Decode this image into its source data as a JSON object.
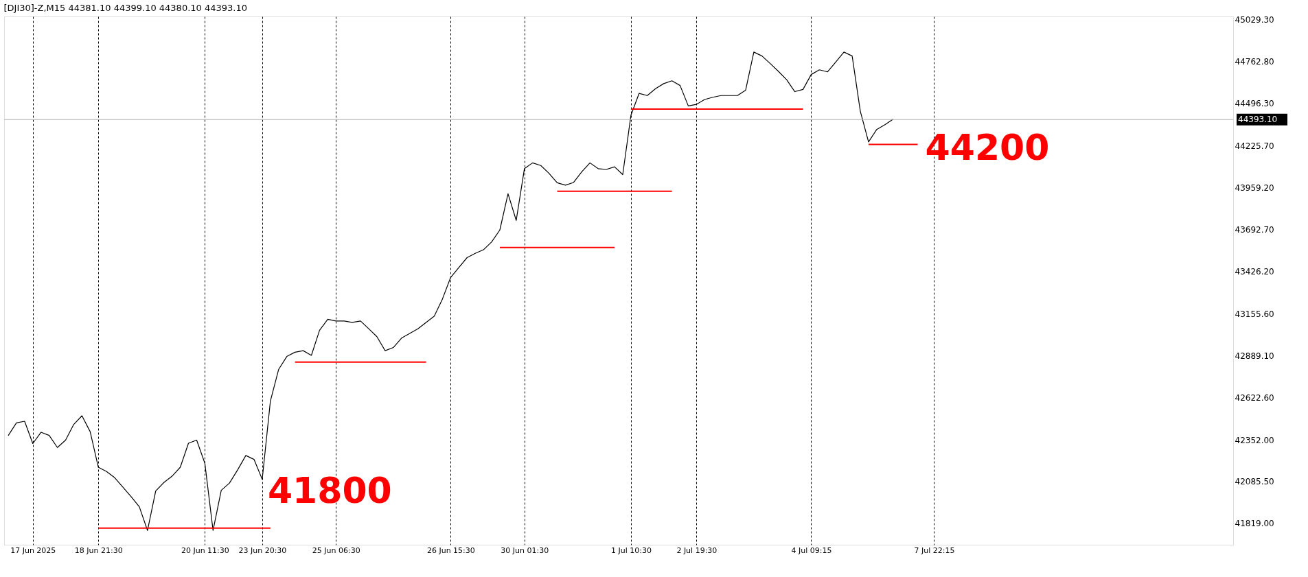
{
  "chart_data": {
    "type": "line",
    "title": "[DJI30]-Z,M15  44381.10 44399.10 44380.10 44393.10",
    "categories": [
      null,
      null,
      null,
      "17 Jun 2025",
      null,
      null,
      null,
      null,
      null,
      null,
      null,
      "18 Jun 21:30",
      null,
      null,
      null,
      null,
      null,
      null,
      null,
      null,
      null,
      null,
      null,
      null,
      "20 Jun 11:30",
      null,
      null,
      null,
      null,
      null,
      null,
      "23 Jun 20:30",
      null,
      null,
      null,
      null,
      null,
      null,
      null,
      null,
      "25 Jun 06:30",
      null,
      null,
      null,
      null,
      null,
      null,
      null,
      null,
      null,
      null,
      null,
      null,
      null,
      "26 Jun 15:30",
      null,
      null,
      null,
      null,
      null,
      null,
      null,
      null,
      "30 Jun 01:30",
      null,
      null,
      null,
      null,
      null,
      null,
      null,
      null,
      null,
      null,
      null,
      null,
      "1 Jul 10:30",
      null,
      null,
      null,
      null,
      null,
      null,
      null,
      "2 Jul 19:30",
      null,
      null,
      null,
      null,
      null,
      null,
      null,
      null,
      null,
      null,
      null,
      null,
      null,
      "4 Jul 09:15",
      null,
      null,
      null,
      null,
      null,
      null,
      null,
      null,
      null,
      null,
      null,
      null,
      null,
      null,
      "7 Jul 22:15",
      null,
      null,
      null,
      null,
      null,
      null,
      null,
      null,
      null,
      null,
      null,
      null,
      null,
      null,
      null,
      null,
      null,
      null,
      null,
      null,
      null,
      null,
      null,
      null,
      null,
      null,
      null,
      null,
      null,
      null,
      null,
      null,
      null,
      null,
      null,
      null
    ],
    "ylim": [
      41683,
      45050
    ],
    "yticks": [
      {
        "value": 41819,
        "label": "41819.00"
      },
      {
        "value": 42085.5,
        "label": "42085.50"
      },
      {
        "value": 42352,
        "label": "42352.00"
      },
      {
        "value": 42622.6,
        "label": "42622.60"
      },
      {
        "value": 42889.1,
        "label": "42889.10"
      },
      {
        "value": 43155.6,
        "label": "43155.60"
      },
      {
        "value": 43426.2,
        "label": "43426.20"
      },
      {
        "value": 43692.7,
        "label": "43692.70"
      },
      {
        "value": 43959.2,
        "label": "43959.20"
      },
      {
        "value": 44225.7,
        "label": "44225.70"
      },
      {
        "value": 44496.3,
        "label": "44496.30"
      },
      {
        "value": 44762.8,
        "label": "44762.80"
      },
      {
        "value": 45029.3,
        "label": "45029.30"
      }
    ],
    "grid": "x",
    "marker": "none",
    "series": [
      {
        "color": "#000000",
        "line_style": "solid",
        "values": [
          42379,
          42460,
          42470,
          42328,
          42400,
          42380,
          42303,
          42350,
          42450,
          42505,
          42404,
          42177,
          42150,
          42110,
          42050,
          41990,
          41925,
          41774,
          42026,
          42080,
          42120,
          42177,
          42330,
          42350,
          42202,
          41774,
          42030,
          42076,
          42160,
          42252,
          42227,
          42100,
          42600,
          42800,
          42883,
          42910,
          42920,
          42890,
          43050,
          43120,
          43109,
          43109,
          43100,
          43109,
          43060,
          43009,
          42920,
          42940,
          43000,
          43030,
          43059,
          43100,
          43140,
          43250,
          43387,
          43450,
          43513,
          43540,
          43563,
          43613,
          43689,
          43920,
          43750,
          44080,
          44117,
          44100,
          44050,
          43990,
          43975,
          43992,
          44060,
          44117,
          44080,
          44075,
          44092,
          44042,
          44420,
          44560,
          44546,
          44590,
          44622,
          44640,
          44610,
          44480,
          44490,
          44521,
          44535,
          44546,
          44546,
          44546,
          44580,
          44823,
          44798,
          44750,
          44700,
          44647,
          44571,
          44585,
          44680,
          44710,
          44697,
          44760,
          44823,
          44798,
          44445,
          44250,
          44330,
          44360,
          44395,
          null,
          null,
          null,
          null,
          null,
          null,
          null,
          null,
          null,
          null,
          null,
          null,
          null,
          null,
          null,
          null,
          null,
          null,
          null,
          null,
          null,
          null,
          null,
          null,
          null,
          null,
          null,
          null,
          null,
          null,
          null,
          null,
          null,
          null,
          null,
          null,
          null,
          null,
          null,
          null,
          null
        ]
      },
      {
        "type": "line",
        "color": "#ff0000",
        "line_style": "solid",
        "values": [
          null,
          null,
          null,
          null,
          null,
          null,
          null,
          null,
          null,
          null,
          null,
          41789,
          41789,
          41789,
          41789,
          41789,
          41789,
          41789,
          41789,
          41789,
          41789,
          41789,
          41789,
          41789,
          41789,
          41789,
          41789,
          41789,
          41789,
          41789,
          41789,
          41789,
          41789,
          null,
          null,
          null,
          null,
          null,
          null,
          null,
          null,
          null,
          null,
          null,
          null,
          null,
          null,
          null,
          null,
          null,
          null,
          null,
          null,
          null,
          null,
          null,
          null,
          null,
          null,
          null,
          null,
          null,
          null,
          null,
          null,
          null,
          null,
          null,
          null,
          null,
          null,
          null,
          null,
          null,
          null,
          null,
          null,
          null,
          null,
          null,
          null,
          null,
          null,
          null,
          null,
          null,
          null,
          null,
          null,
          null,
          null,
          null,
          null,
          null,
          null,
          null,
          null,
          null,
          null,
          null,
          null,
          null,
          null,
          null,
          null,
          null,
          null,
          null,
          null,
          null,
          null,
          null,
          null,
          null,
          null,
          null,
          null,
          null,
          null,
          null,
          null,
          null,
          null,
          null,
          null,
          null,
          null,
          null,
          null,
          null,
          null,
          null,
          null,
          null,
          null,
          null,
          null,
          null,
          null,
          null,
          null,
          null,
          null,
          null,
          null,
          null,
          null,
          null,
          null,
          null
        ]
      },
      {
        "type": "line",
        "color": "#ff0000",
        "line_style": "solid",
        "values": [
          null,
          null,
          null,
          null,
          null,
          null,
          null,
          null,
          null,
          null,
          null,
          null,
          null,
          null,
          null,
          null,
          null,
          null,
          null,
          null,
          null,
          null,
          null,
          null,
          null,
          null,
          null,
          null,
          null,
          null,
          null,
          null,
          null,
          null,
          null,
          42847,
          42847,
          42847,
          42847,
          42847,
          42847,
          42847,
          42847,
          42847,
          42847,
          42847,
          42847,
          42847,
          42847,
          42847,
          42847,
          42847,
          null,
          null,
          null,
          null,
          null,
          null,
          null,
          null,
          null,
          null,
          null,
          null,
          null,
          null,
          null,
          null,
          null,
          null,
          null,
          null,
          null,
          null,
          null,
          null,
          null,
          null,
          null,
          null,
          null,
          null,
          null,
          null,
          null,
          null,
          null,
          null,
          null,
          null,
          null,
          null,
          null,
          null,
          null,
          null,
          null,
          null,
          null,
          null,
          null,
          null,
          null,
          null,
          null,
          null,
          null,
          null,
          null,
          null,
          null,
          null,
          null,
          null,
          null,
          null,
          null,
          null,
          null,
          null,
          null,
          null,
          null,
          null,
          null,
          null,
          null,
          null,
          null,
          null,
          null,
          null,
          null,
          null,
          null,
          null,
          null,
          null,
          null,
          null,
          null,
          null,
          null,
          null,
          null,
          null,
          null,
          null,
          null,
          null
        ]
      },
      {
        "type": "line",
        "color": "#ff0000",
        "line_style": "solid",
        "values": [
          null,
          null,
          null,
          null,
          null,
          null,
          null,
          null,
          null,
          null,
          null,
          null,
          null,
          null,
          null,
          null,
          null,
          null,
          null,
          null,
          null,
          null,
          null,
          null,
          null,
          null,
          null,
          null,
          null,
          null,
          null,
          null,
          null,
          null,
          null,
          null,
          null,
          null,
          null,
          null,
          null,
          null,
          null,
          null,
          null,
          null,
          null,
          null,
          null,
          null,
          null,
          null,
          null,
          null,
          null,
          null,
          null,
          null,
          null,
          null,
          43578,
          43578,
          43578,
          43578,
          43578,
          43578,
          43578,
          43578,
          43578,
          43578,
          43578,
          43578,
          43578,
          43578,
          43578,
          null,
          null,
          null,
          null,
          null,
          null,
          null,
          null,
          null,
          null,
          null,
          null,
          null,
          null,
          null,
          null,
          null,
          null,
          null,
          null,
          null,
          null,
          null,
          null,
          null,
          null,
          null,
          null,
          null,
          null,
          null,
          null,
          null,
          null,
          null,
          null,
          null,
          null,
          null,
          null,
          null,
          null,
          null,
          null,
          null,
          null,
          null,
          null,
          null,
          null,
          null,
          null,
          null,
          null,
          null,
          null,
          null,
          null,
          null,
          null,
          null,
          null,
          null,
          null,
          null,
          null,
          null,
          null,
          null,
          null,
          null,
          null,
          null,
          null,
          null
        ]
      },
      {
        "type": "line",
        "color": "#ff0000",
        "line_style": "solid",
        "values": [
          null,
          null,
          null,
          null,
          null,
          null,
          null,
          null,
          null,
          null,
          null,
          null,
          null,
          null,
          null,
          null,
          null,
          null,
          null,
          null,
          null,
          null,
          null,
          null,
          null,
          null,
          null,
          null,
          null,
          null,
          null,
          null,
          null,
          null,
          null,
          null,
          null,
          null,
          null,
          null,
          null,
          null,
          null,
          null,
          null,
          null,
          null,
          null,
          null,
          null,
          null,
          null,
          null,
          null,
          null,
          null,
          null,
          null,
          null,
          null,
          null,
          null,
          null,
          null,
          null,
          null,
          null,
          43936,
          43936,
          43936,
          43936,
          43936,
          43936,
          43936,
          43936,
          43936,
          43936,
          43936,
          43936,
          43936,
          43936,
          43936,
          null,
          null,
          null,
          null,
          null,
          null,
          null,
          null,
          null,
          null,
          null,
          null,
          null,
          null,
          null,
          null,
          null,
          null,
          null,
          null,
          null,
          null,
          null,
          null,
          null,
          null,
          null,
          null,
          null,
          null,
          null,
          null,
          null,
          null,
          null,
          null,
          null,
          null,
          null,
          null,
          null,
          null,
          null,
          null,
          null,
          null,
          null,
          null,
          null,
          null,
          null,
          null,
          null,
          null,
          null,
          null,
          null,
          null,
          null,
          null,
          null,
          null,
          null,
          null,
          null,
          null,
          null,
          null
        ]
      },
      {
        "type": "line",
        "color": "#ff0000",
        "line_style": "solid",
        "values": [
          null,
          null,
          null,
          null,
          null,
          null,
          null,
          null,
          null,
          null,
          null,
          null,
          null,
          null,
          null,
          null,
          null,
          null,
          null,
          null,
          null,
          null,
          null,
          null,
          null,
          null,
          null,
          null,
          null,
          null,
          null,
          null,
          null,
          null,
          null,
          null,
          null,
          null,
          null,
          null,
          null,
          null,
          null,
          null,
          null,
          null,
          null,
          null,
          null,
          null,
          null,
          null,
          null,
          null,
          null,
          null,
          null,
          null,
          null,
          null,
          null,
          null,
          null,
          null,
          null,
          null,
          null,
          null,
          null,
          null,
          null,
          null,
          null,
          null,
          null,
          null,
          44460,
          44460,
          44460,
          44460,
          44460,
          44460,
          44460,
          44460,
          44460,
          44460,
          44460,
          44460,
          44460,
          44460,
          44460,
          44460,
          44460,
          44460,
          44460,
          44460,
          44460,
          44460,
          null,
          null,
          null,
          null,
          null,
          null,
          null,
          null,
          null,
          null,
          null,
          null,
          null,
          null,
          null,
          null,
          null,
          null,
          null,
          null,
          null,
          null,
          null,
          null,
          null,
          null,
          null,
          null,
          null,
          null,
          null,
          null,
          null,
          null,
          null,
          null,
          null,
          null,
          null,
          null,
          null,
          null,
          null,
          null,
          null,
          null,
          null,
          null,
          null,
          null,
          null,
          null
        ]
      },
      {
        "type": "line",
        "color": "#ff0000",
        "line_style": "solid",
        "values": [
          null,
          null,
          null,
          null,
          null,
          null,
          null,
          null,
          null,
          null,
          null,
          null,
          null,
          null,
          null,
          null,
          null,
          null,
          null,
          null,
          null,
          null,
          null,
          null,
          null,
          null,
          null,
          null,
          null,
          null,
          null,
          null,
          null,
          null,
          null,
          null,
          null,
          null,
          null,
          null,
          null,
          null,
          null,
          null,
          null,
          null,
          null,
          null,
          null,
          null,
          null,
          null,
          null,
          null,
          null,
          null,
          null,
          null,
          null,
          null,
          null,
          null,
          null,
          null,
          null,
          null,
          null,
          null,
          null,
          null,
          null,
          null,
          null,
          null,
          null,
          null,
          null,
          null,
          null,
          null,
          null,
          null,
          null,
          null,
          null,
          null,
          null,
          null,
          null,
          null,
          null,
          null,
          null,
          null,
          null,
          null,
          null,
          null,
          null,
          null,
          null,
          null,
          null,
          null,
          null,
          44234,
          44234,
          44234,
          44234,
          44234,
          44234,
          44234,
          null,
          null,
          null,
          null,
          null,
          null,
          null,
          null,
          null,
          null,
          null,
          null,
          null,
          null,
          null,
          null,
          null,
          null,
          null,
          null,
          null,
          null,
          null,
          null,
          null,
          null,
          null,
          null,
          null,
          null,
          null,
          null,
          null,
          null,
          null,
          null,
          null,
          null
        ]
      }
    ],
    "ref_lines": [
      {
        "axis": "y",
        "value": 44393.1,
        "label": "44393.10",
        "color": "#b0b0b0"
      }
    ],
    "annotations": [
      "41800",
      "44200"
    ]
  }
}
